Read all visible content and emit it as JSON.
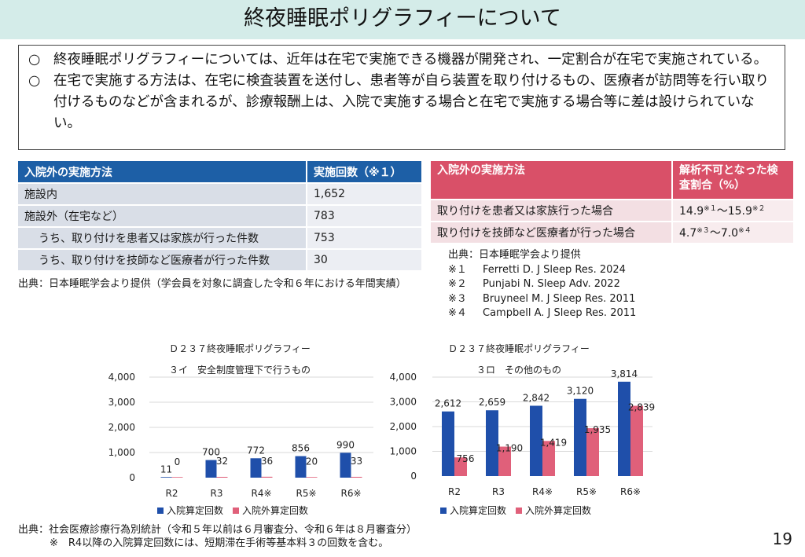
{
  "title": "終夜睡眠ポリグラフィーについて",
  "summary": {
    "bullet": "○",
    "items": [
      "終夜睡眠ポリグラフィーについては、近年は在宅で実施できる機器が開発され、一定割合が在宅で実施されている。",
      "在宅で実施する方法は、在宅に検査装置を送付し、患者等が自ら装置を取り付けるもの、医療者が訪問等を行い取り付けるものなどが含まれるが、診療報酬上は、入院で実施する場合と在宅で実施する場合等に差は設けられていない。"
    ]
  },
  "table_blue": {
    "headers": [
      "入院外の実施方法",
      "実施回数（※１）"
    ],
    "rows": [
      {
        "label": "施設内",
        "value": "1,652",
        "indent": false
      },
      {
        "label": "施設外（在宅など）",
        "value": "783",
        "indent": false
      },
      {
        "label": "うち、取り付けを患者又は家族が行った件数",
        "value": "753",
        "indent": true
      },
      {
        "label": "うち、取り付けを技師など医療者が行った件数",
        "value": "30",
        "indent": true
      }
    ],
    "source": "出典：日本睡眠学会より提供（学会員を対象に調査した令和６年における年間実績）"
  },
  "table_red": {
    "headers": [
      "入院外の実施方法",
      "解析不可となった検査割合（%）"
    ],
    "rows": [
      {
        "label": "取り付けを患者又は家族行った場合",
        "v1": "14.9",
        "s1": "※１",
        "sep": "～",
        "v2": "15.9",
        "s2": "※２"
      },
      {
        "label": "取り付けを技師など医療者が行った場合",
        "v1": "4.7",
        "s1": "※３",
        "sep": "～",
        "v2": "7.0",
        "s2": "※４"
      }
    ]
  },
  "references": {
    "source": "出典：日本睡眠学会より提供",
    "items": [
      {
        "mark": "※１",
        "text": "Ferretti D. J Sleep Res. 2024"
      },
      {
        "mark": "※２",
        "text": "Punjabi N. Sleep Adv. 2022"
      },
      {
        "mark": "※３",
        "text": "Bruyneel M. J Sleep Res. 2011"
      },
      {
        "mark": "※４",
        "text": "Campbell A. J Sleep Res. 2011"
      }
    ]
  },
  "chart_data": [
    {
      "type": "bar",
      "title": "Ｄ２３７終夜睡眠ポリグラフィー",
      "subtitle": "３イ　安全制度管理下で行うもの",
      "categories": [
        "R2",
        "R3",
        "R4※",
        "R5※",
        "R6※"
      ],
      "series": [
        {
          "name": "入院算定回数",
          "color": "#1f4faa",
          "values": [
            11,
            700,
            772,
            856,
            990
          ],
          "labels": [
            "11",
            "700",
            "772",
            "856",
            "990"
          ]
        },
        {
          "name": "入院外算定回数",
          "color": "#e0607a",
          "values": [
            0,
            32,
            36,
            20,
            33
          ],
          "labels": [
            "0",
            "32",
            "36",
            "20",
            "33"
          ]
        }
      ],
      "yticks": [
        "0",
        "1,000",
        "2,000",
        "3,000",
        "4,000"
      ],
      "ylim": [
        0,
        4000
      ]
    },
    {
      "type": "bar",
      "title": "Ｄ２３７終夜睡眠ポリグラフィー",
      "subtitle": "３ロ　その他のもの",
      "categories": [
        "R2",
        "R3",
        "R4※",
        "R5※",
        "R6※"
      ],
      "series": [
        {
          "name": "入院算定回数",
          "color": "#1f4faa",
          "values": [
            2612,
            2659,
            2842,
            3120,
            3814
          ],
          "labels": [
            "2,612",
            "2,659",
            "2,842",
            "3,120",
            "3,814"
          ]
        },
        {
          "name": "入院外算定回数",
          "color": "#e0607a",
          "values": [
            756,
            1190,
            1419,
            1935,
            2839
          ],
          "labels": [
            "756",
            "1,190",
            "1,419",
            "1,935",
            "2,839"
          ]
        }
      ],
      "yticks": [
        "0",
        "1,000",
        "2,000",
        "3,000",
        "4,000"
      ],
      "ylim": [
        0,
        4000
      ]
    }
  ],
  "footer": {
    "line1": "出典：社会医療診療行為別統計（令和５年以前は６月審査分、令和６年は８月審査分）",
    "line2": "※　R4以降の入院算定回数には、短期滞在手術等基本料３の回数を含む。"
  },
  "page_number": "19"
}
